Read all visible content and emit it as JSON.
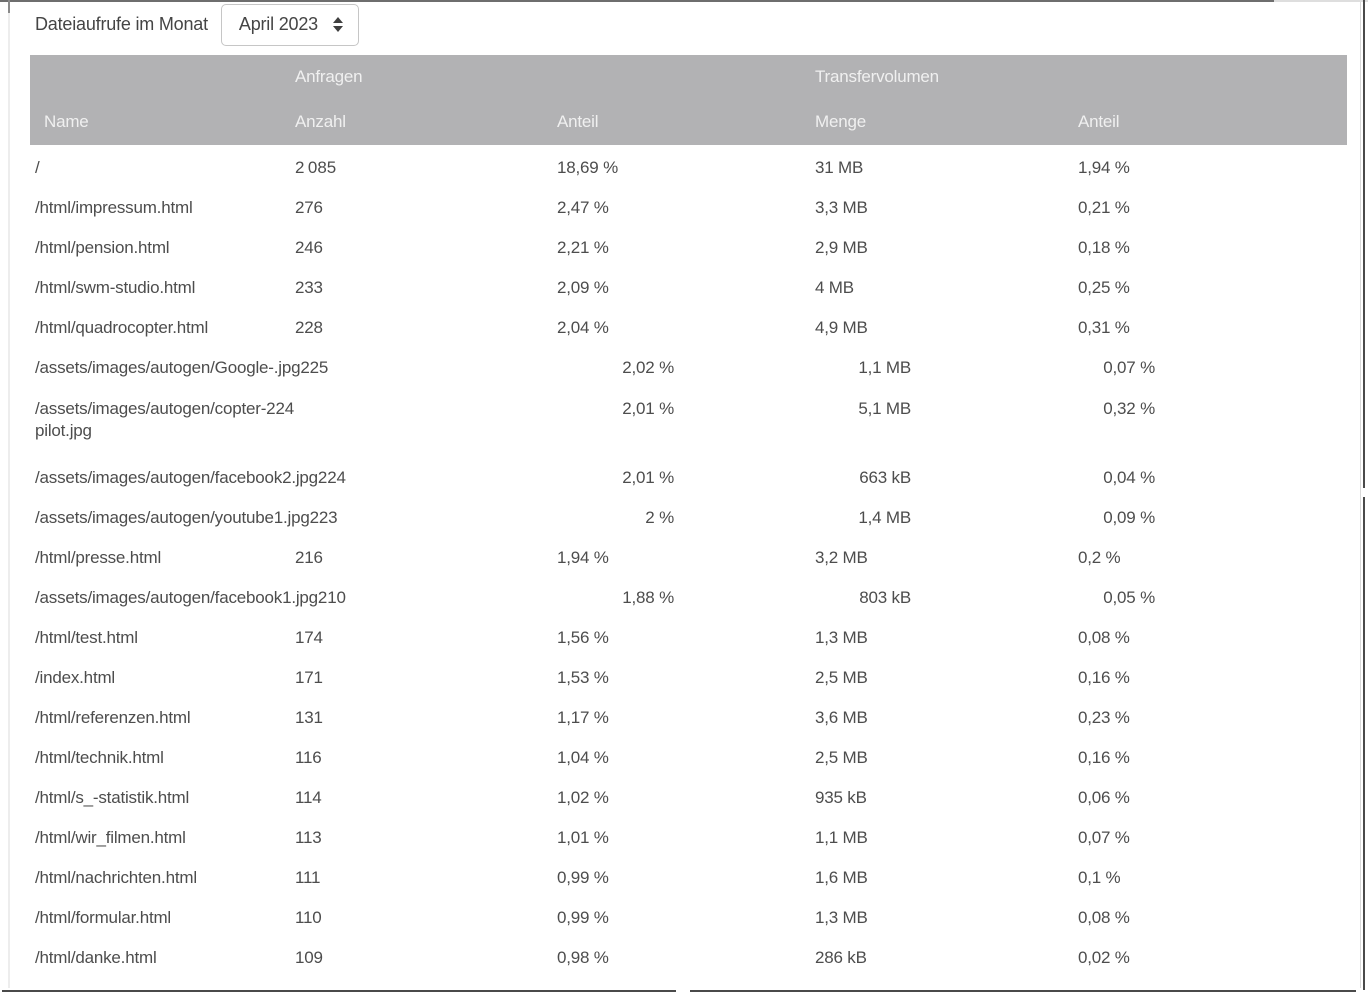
{
  "toolbar": {
    "label": "Dateiaufrufe im Monat",
    "month_select": {
      "value": "April 2023",
      "icon": "up-down-arrows-icon"
    }
  },
  "table": {
    "group_headers": {
      "anfragen": "Anfragen",
      "transfervolumen": "Transfervolumen"
    },
    "columns": {
      "name": "Name",
      "anzahl": "Anzahl",
      "anteil_anfragen": "Anteil",
      "menge": "Menge",
      "anteil_transfer": "Anteil"
    },
    "rows": [
      {
        "name": "/",
        "anzahl": "2 085",
        "anteil": "18,69 %",
        "menge": "31 MB",
        "anteil_transfer": "1,94 %",
        "layout": "normal"
      },
      {
        "name": "/html/impressum.html",
        "anzahl": "276",
        "anteil": "2,47 %",
        "menge": "3,3 MB",
        "anteil_transfer": "0,21 %",
        "layout": "normal"
      },
      {
        "name": "/html/pension.html",
        "anzahl": "246",
        "anteil": "2,21 %",
        "menge": "2,9 MB",
        "anteil_transfer": "0,18 %",
        "layout": "normal"
      },
      {
        "name": "/html/swm-studio.html",
        "anzahl": "233",
        "anteil": "2,09 %",
        "menge": "4 MB",
        "anteil_transfer": "0,25 %",
        "layout": "normal"
      },
      {
        "name": "/html/quadrocopter.html",
        "anzahl": "228",
        "anteil": "2,04 %",
        "menge": "4,9 MB",
        "anteil_transfer": "0,31 %",
        "layout": "normal"
      },
      {
        "name": "/assets/images/autogen/Google-.jpg",
        "anzahl": "225",
        "anteil": "2,02 %",
        "menge": "1,1 MB",
        "anteil_transfer": "0,07 %",
        "layout": "merged"
      },
      {
        "name": "/assets/images/autogen/copter-",
        "name2": "pilot.jpg",
        "anzahl": "224",
        "anteil": "2,01 %",
        "menge": "5,1 MB",
        "anteil_transfer": "0,32 %",
        "layout": "merged-wrap"
      },
      {
        "name": "/assets/images/autogen/facebook2.jpg",
        "anzahl": "224",
        "anteil": "2,01 %",
        "menge": "663 kB",
        "anteil_transfer": "0,04 %",
        "layout": "merged"
      },
      {
        "name": "/assets/images/autogen/youtube1.jpg",
        "anzahl": "223",
        "anteil": "2 %",
        "menge": "1,4 MB",
        "anteil_transfer": "0,09 %",
        "layout": "merged"
      },
      {
        "name": "/html/presse.html",
        "anzahl": "216",
        "anteil": "1,94 %",
        "menge": "3,2 MB",
        "anteil_transfer": "0,2 %",
        "layout": "normal"
      },
      {
        "name": "/assets/images/autogen/facebook1.jpg",
        "anzahl": "210",
        "anteil": "1,88 %",
        "menge": "803 kB",
        "anteil_transfer": "0,05 %",
        "layout": "merged"
      },
      {
        "name": "/html/test.html",
        "anzahl": "174",
        "anteil": "1,56 %",
        "menge": "1,3 MB",
        "anteil_transfer": "0,08 %",
        "layout": "normal"
      },
      {
        "name": "/index.html",
        "anzahl": "171",
        "anteil": "1,53 %",
        "menge": "2,5 MB",
        "anteil_transfer": "0,16 %",
        "layout": "normal"
      },
      {
        "name": "/html/referenzen.html",
        "anzahl": "131",
        "anteil": "1,17 %",
        "menge": "3,6 MB",
        "anteil_transfer": "0,23 %",
        "layout": "normal"
      },
      {
        "name": "/html/technik.html",
        "anzahl": "116",
        "anteil": "1,04 %",
        "menge": "2,5 MB",
        "anteil_transfer": "0,16 %",
        "layout": "normal"
      },
      {
        "name": "/html/s_-statistik.html",
        "anzahl": "114",
        "anteil": "1,02 %",
        "menge": "935 kB",
        "anteil_transfer": "0,06 %",
        "layout": "normal"
      },
      {
        "name": "/html/wir_filmen.html",
        "anzahl": "113",
        "anteil": "1,01 %",
        "menge": "1,1 MB",
        "anteil_transfer": "0,07 %",
        "layout": "normal"
      },
      {
        "name": "/html/nachrichten.html",
        "anzahl": "111",
        "anteil": "0,99 %",
        "menge": "1,6 MB",
        "anteil_transfer": "0,1 %",
        "layout": "normal"
      },
      {
        "name": "/html/formular.html",
        "anzahl": "110",
        "anteil": "0,99 %",
        "menge": "1,3 MB",
        "anteil_transfer": "0,08 %",
        "layout": "normal"
      },
      {
        "name": "/html/danke.html",
        "anzahl": "109",
        "anteil": "0,98 %",
        "menge": "286 kB",
        "anteil_transfer": "0,02 %",
        "layout": "normal"
      }
    ]
  },
  "colors": {
    "header_bg": "#b2b2b4",
    "header_text": "#f0f0f0",
    "body_text": "#4d4d4d",
    "border_dark": "#4a4a4a",
    "select_border": "#c6c6c6"
  }
}
